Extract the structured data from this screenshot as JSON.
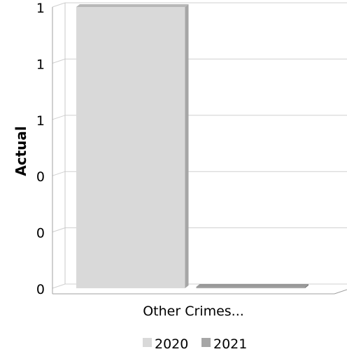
{
  "chart_data": {
    "type": "bar",
    "categories": [
      "Other Crimes..."
    ],
    "series": [
      {
        "name": "2020",
        "values": [
          1
        ],
        "color": "#d9d9d9",
        "side_color": "#a6a6a6"
      },
      {
        "name": "2021",
        "values": [
          0
        ],
        "color": "#a6a6a6",
        "side_color": "#808080"
      }
    ],
    "ylabel": "Actual",
    "xlabel": "",
    "ylim": [
      0,
      1
    ],
    "y_tick_labels": [
      "0",
      "0",
      "0",
      "1",
      "1",
      "1"
    ],
    "grid": true,
    "legend_position": "bottom",
    "style": "3d"
  }
}
